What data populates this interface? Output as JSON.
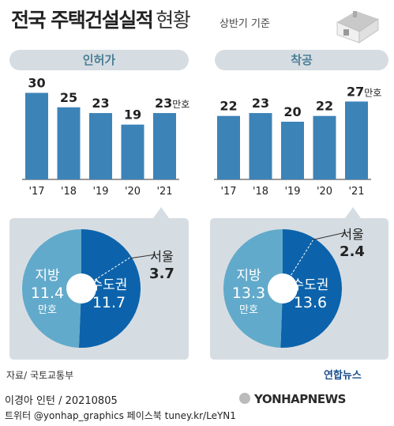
{
  "header": {
    "title": "전국 주택건설실적",
    "title_suffix": "현황",
    "basis": "상반기 기준"
  },
  "colors": {
    "bar": "#3c83b8",
    "pie_capital": "#0c63ab",
    "pie_local": "#62aacb",
    "panel": "#d6dde2",
    "pill_text": "#4c7f96"
  },
  "chart_data": [
    {
      "type": "bar",
      "title": "인허가",
      "categories": [
        "'17",
        "'18",
        "'19",
        "'20",
        "'21"
      ],
      "values": [
        30,
        25,
        23,
        19,
        23
      ],
      "value_labels": [
        "30",
        "25",
        "23",
        "19",
        "23"
      ],
      "unit": "만호"
    },
    {
      "type": "bar",
      "title": "착공",
      "categories": [
        "'17",
        "'18",
        "'19",
        "'20",
        "'21"
      ],
      "values": [
        22,
        23,
        20,
        22,
        27
      ],
      "value_labels": [
        "22",
        "23",
        "20",
        "22",
        "27"
      ],
      "unit": "만호"
    },
    {
      "type": "pie",
      "title": "인허가 '21",
      "slices": [
        {
          "name": "수도권",
          "value": 11.7,
          "label": "11.7"
        },
        {
          "name": "지방",
          "value": 11.4,
          "label": "11.4",
          "unit": "만호"
        }
      ],
      "callout": {
        "name": "서울",
        "value": 3.7,
        "label": "3.7"
      }
    },
    {
      "type": "pie",
      "title": "착공 '21",
      "slices": [
        {
          "name": "수도권",
          "value": 13.6,
          "label": "13.6"
        },
        {
          "name": "지방",
          "value": 13.3,
          "label": "13.3",
          "unit": "만호"
        }
      ],
      "callout": {
        "name": "서울",
        "value": 2.4,
        "label": "2.4"
      }
    }
  ],
  "footer": {
    "source": "자료/ 국토교통부",
    "logo": "연합뉴스",
    "credit_line1": "이경아 인턴 / 20210805",
    "credit_line2": "트위터 @yonhap_graphics  페이스북 tuney.kr/LeYN1",
    "watermark": "YONHAPNEWS"
  }
}
